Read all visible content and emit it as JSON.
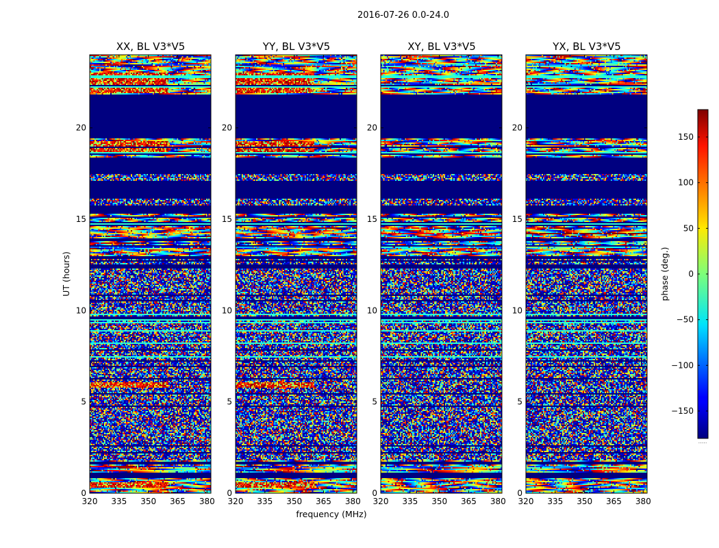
{
  "chart_data": {
    "type": "heatmap",
    "suptitle": "2016-07-26 0.0-24.0",
    "xlabel": "frequency (MHz)",
    "ylabel": "UT (hours)",
    "xlim": [
      320,
      382
    ],
    "ylim": [
      0,
      24
    ],
    "xticks": [
      320,
      335,
      350,
      365,
      380
    ],
    "xtick_labels": [
      "320",
      "335",
      "350",
      "365",
      "380"
    ],
    "yticks": [
      0,
      5,
      10,
      15,
      20
    ],
    "ytick_labels": [
      "0",
      "5",
      "10",
      "15",
      "20"
    ],
    "colorbar": {
      "label": "phase (deg.)",
      "range": [
        -180,
        180
      ],
      "ticks": [
        150,
        100,
        50,
        0,
        -50,
        -100,
        -150
      ],
      "tick_labels": [
        "150",
        "100",
        "50",
        "0",
        "−50",
        "−100",
        "−150"
      ],
      "colormap": "jet",
      "footer": "....."
    },
    "panels": [
      {
        "title": "XX, BL V3*V5",
        "pol": "XX"
      },
      {
        "title": "YY, BL V3*V5",
        "pol": "YY"
      },
      {
        "title": "XY, BL V3*V5",
        "pol": "XY"
      },
      {
        "title": "YX, BL V3*V5",
        "pol": "YX"
      }
    ],
    "flagged_value_deg": -180,
    "flagged_ut_ranges": [
      [
        0.85,
        1.15
      ],
      [
        1.6,
        1.75
      ],
      [
        12.3,
        12.55
      ],
      [
        12.8,
        13.0
      ],
      [
        15.45,
        15.75
      ],
      [
        16.1,
        17.1
      ],
      [
        17.55,
        18.4
      ],
      [
        19.4,
        21.85
      ]
    ],
    "noisy_ut_range": [
      1.8,
      12.3
    ],
    "fringe_ut_ranges": [
      [
        13.0,
        15.4
      ],
      [
        18.4,
        19.4
      ],
      [
        21.85,
        24.0
      ]
    ],
    "high_phase_ut_ranges_parallel": [
      [
        18.5,
        19.3
      ],
      [
        21.9,
        23.0
      ],
      [
        5.8,
        6.1
      ],
      [
        0.3,
        0.6
      ]
    ]
  }
}
